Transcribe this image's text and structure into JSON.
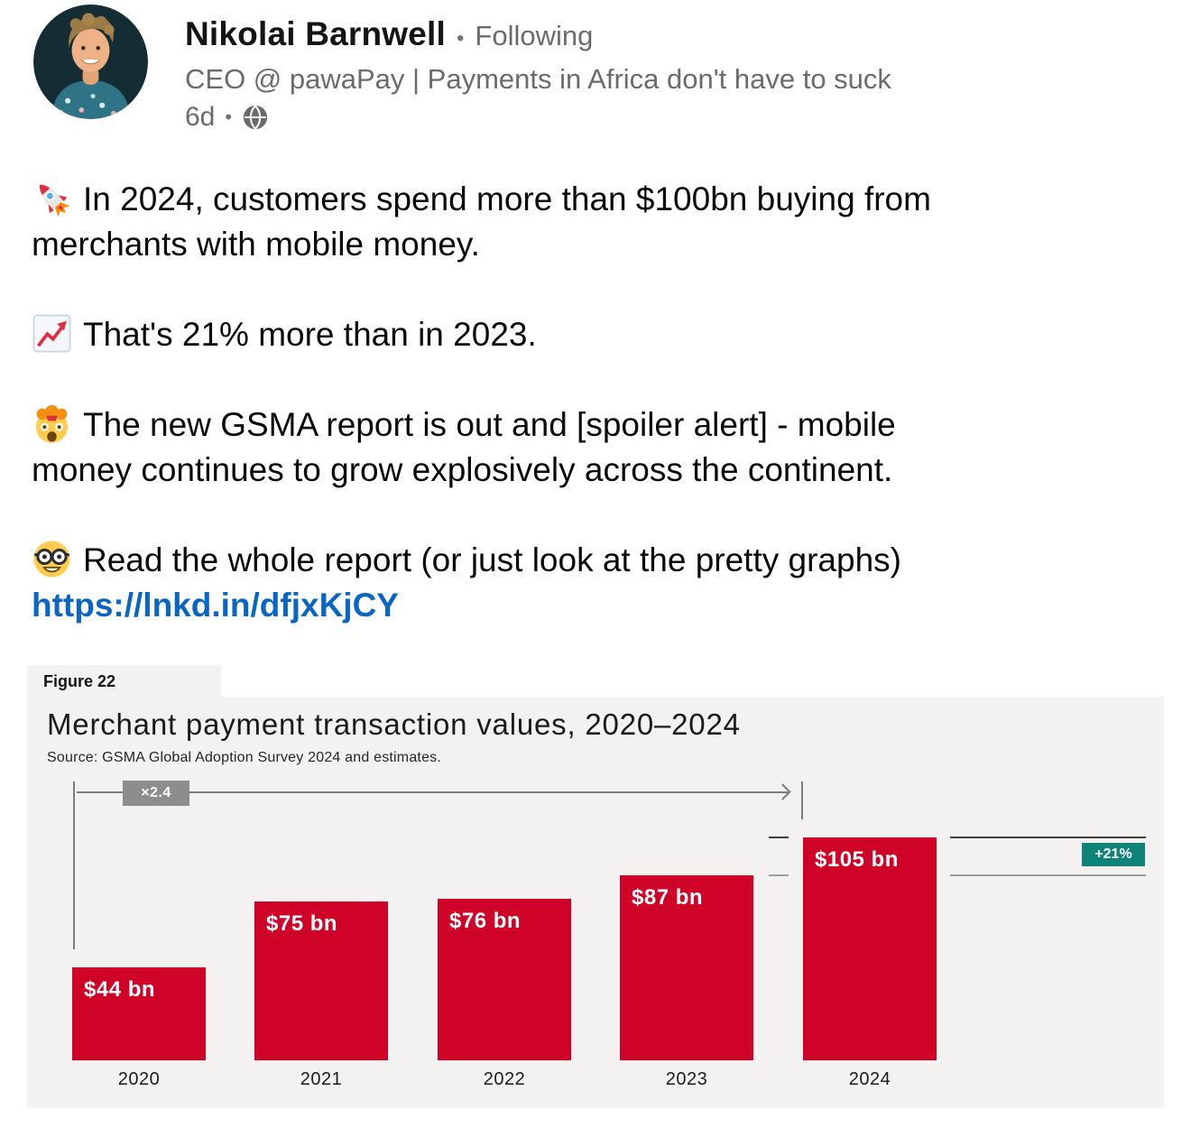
{
  "header": {
    "name": "Nikolai Barnwell",
    "separator": "•",
    "following_label": "Following",
    "headline": "CEO @ pawaPay | Payments in Africa don't have to suck",
    "timestamp": "6d",
    "meta_separator": "•",
    "visibility_icon": "globe-icon"
  },
  "post": {
    "paragraphs": [
      {
        "emoji": "rocket",
        "lines": [
          "In 2024, customers spend more than $100bn buying from",
          "merchants with mobile money."
        ]
      },
      {
        "emoji": "chart-increasing",
        "lines": [
          "That's 21% more than in 2023."
        ]
      },
      {
        "emoji": "exploding-head",
        "lines": [
          "The new GSMA report is out and [spoiler alert] - mobile",
          "money continues to grow explosively across the continent."
        ]
      },
      {
        "emoji": "nerd-face",
        "lines": [
          "Read the whole report (or just look at the pretty graphs)"
        ]
      }
    ],
    "link_text": "https://lnkd.in/dfjxKjCY"
  },
  "figure": {
    "tab_label": "Figure 22",
    "title": "Merchant payment transaction values, 2020–2024",
    "source": "Source: GSMA Global Adoption Survey 2024 and estimates.",
    "multiplier_annotation": "×2.4",
    "growth_badge": "+21%"
  },
  "chart_data": {
    "type": "bar",
    "title": "Merchant payment transaction values, 2020–2024",
    "categories": [
      "2020",
      "2021",
      "2022",
      "2023",
      "2024"
    ],
    "values": [
      44,
      75,
      76,
      87,
      105
    ],
    "value_labels": [
      "$44 bn",
      "$75 bn",
      "$76 bn",
      "$87 bn",
      "$105 bn"
    ],
    "unit": "USD billions",
    "ylim": [
      0,
      110
    ],
    "grid": false,
    "legend": "none",
    "annotations": [
      {
        "text": "×2.4",
        "meaning": "growth multiple from 2020 to 2024"
      },
      {
        "text": "+21%",
        "meaning": "year-over-year growth from 2023 to 2024"
      }
    ],
    "bar_color": "#cf0327",
    "badge_color": "#0e8478"
  },
  "colors": {
    "link": "#0a66c2",
    "panel_bg": "#f3f2f0",
    "annotation_gray": "#8d8d8d"
  }
}
